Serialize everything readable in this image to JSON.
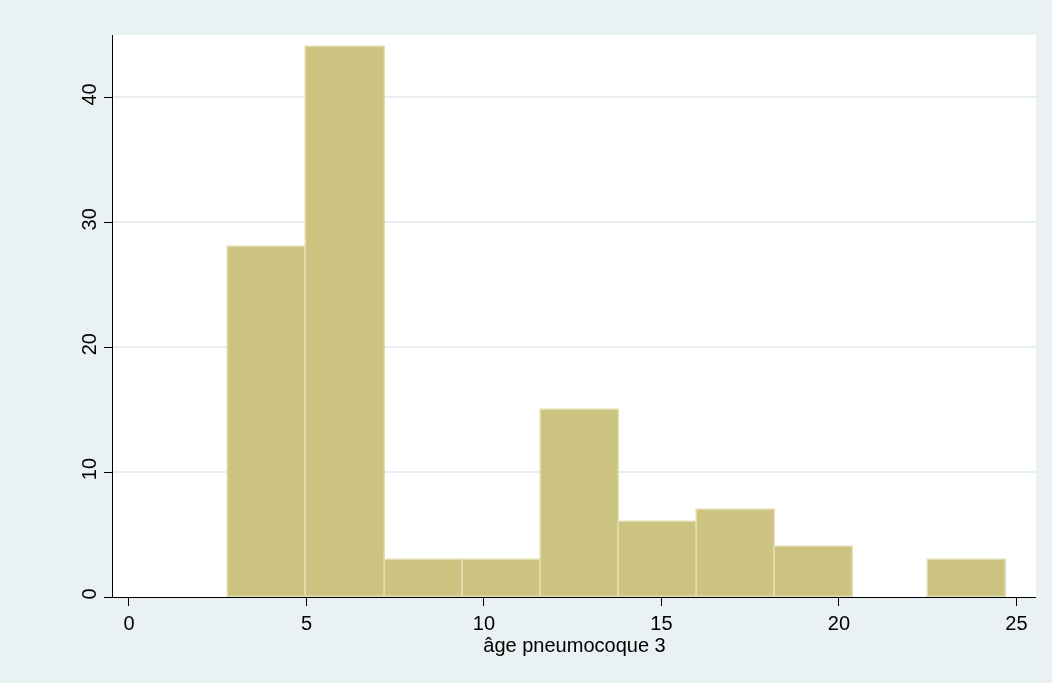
{
  "chart_data": {
    "type": "histogram",
    "xlabel": "âge pneumocoque 3",
    "bins": [
      2.8,
      5.0,
      7.2,
      9.4,
      11.6,
      13.8,
      16.0,
      18.2,
      20.4,
      22.5,
      24.7
    ],
    "values": [
      28,
      44,
      3,
      3,
      15,
      6,
      7,
      4,
      0,
      3
    ],
    "color": "#cbc37f",
    "xlim": [
      -0.45,
      25.55
    ],
    "xticks": [
      0,
      5,
      10,
      15,
      20,
      25
    ],
    "ylim": [
      0,
      45
    ],
    "yticks": [
      0,
      10,
      20,
      30,
      40
    ],
    "grid": "y"
  }
}
